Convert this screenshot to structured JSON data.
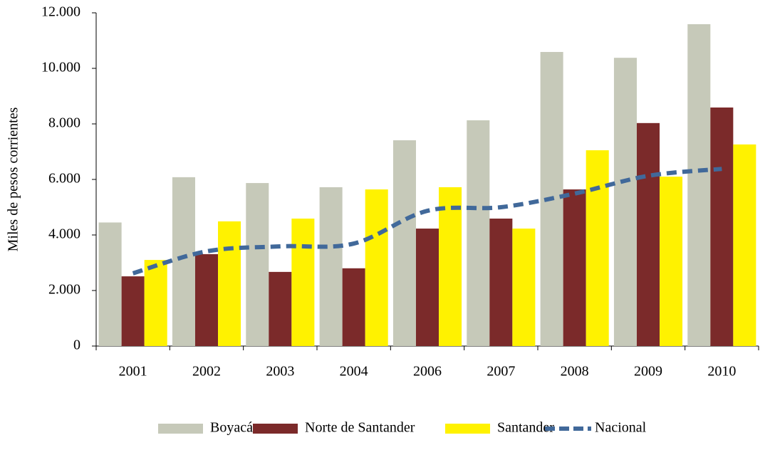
{
  "chart_data": {
    "type": "bar",
    "y_label": "Miles de pesos corrientes",
    "categories": [
      "2001",
      "2002",
      "2003",
      "2004",
      "2006",
      "2007",
      "2008",
      "2009",
      "2010"
    ],
    "series": [
      {
        "name": "Boyacá",
        "type": "bar",
        "color": "#c6c9b9",
        "values": [
          4450,
          6080,
          5870,
          5720,
          7410,
          8130,
          10590,
          10380,
          11590
        ]
      },
      {
        "name": "Norte de Santander",
        "type": "bar",
        "color": "#7b2a2a",
        "values": [
          2510,
          3310,
          2670,
          2800,
          4230,
          4590,
          5640,
          8030,
          8590
        ]
      },
      {
        "name": "Santander",
        "type": "bar",
        "color": "#fff200",
        "values": [
          3100,
          4490,
          4590,
          5640,
          5720,
          4230,
          7050,
          6100,
          7260
        ]
      },
      {
        "name": "Nacional",
        "type": "line",
        "color": "#41699a",
        "dashed": true,
        "values": [
          2620,
          3410,
          3590,
          3690,
          4870,
          5000,
          5490,
          6130,
          6380
        ]
      }
    ],
    "ylim": [
      0,
      12000
    ],
    "yticks": [
      0,
      {
        "value": 2000,
        "label": "2.000"
      },
      {
        "value": 4000,
        "label": "4.000"
      },
      {
        "value": 6000,
        "label": "6.000"
      },
      {
        "value": 8000,
        "label": "8.000"
      },
      {
        "value": 10000,
        "label": "10.000"
      },
      {
        "value": 12000,
        "label": "12.000"
      }
    ],
    "legend": "bottom"
  }
}
